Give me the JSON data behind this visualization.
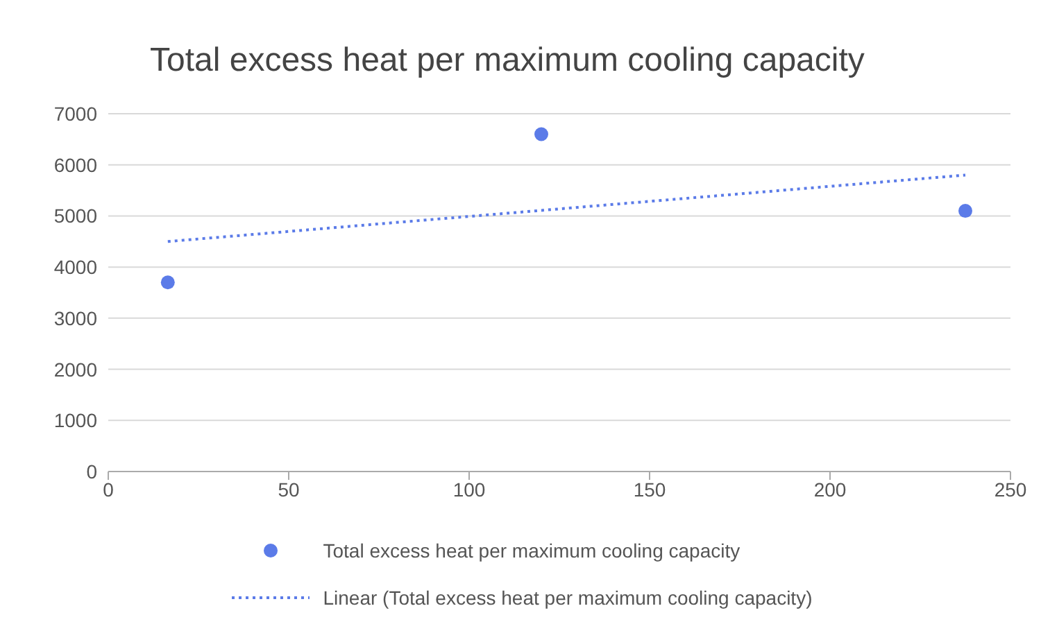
{
  "chart_data": {
    "type": "scatter",
    "title": "Total excess heat per maximum cooling capacity",
    "series": [
      {
        "name": "Total excess heat per maximum cooling capacity",
        "color": "#5b7be8",
        "x": [
          16.5,
          120,
          237.5
        ],
        "values": [
          3700,
          6600,
          5100
        ],
        "marker": "circle"
      },
      {
        "name": "Linear (Total excess heat per maximum cooling capacity)",
        "type": "line",
        "color": "#5b7be8",
        "x": [
          16.5,
          237.5
        ],
        "values": [
          4500,
          5800
        ],
        "line_style": "dotted",
        "marker": "none"
      }
    ],
    "xlim": [
      0,
      250
    ],
    "xticks": [
      0,
      50,
      100,
      150,
      200,
      250
    ],
    "ylim": [
      0,
      7000
    ],
    "yticks": [
      0,
      1000,
      2000,
      3000,
      4000,
      5000,
      6000,
      7000
    ],
    "grid": "y",
    "legend": "bottom"
  }
}
